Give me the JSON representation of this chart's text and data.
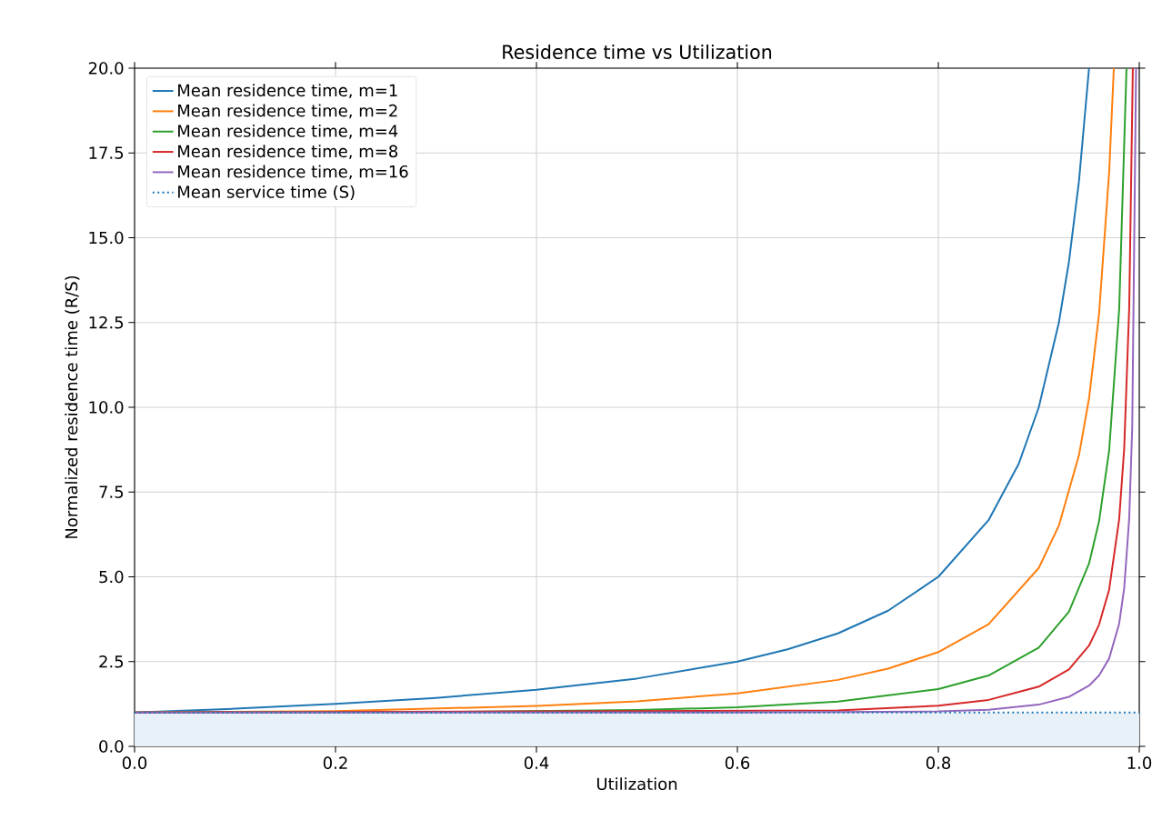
{
  "chart_data": {
    "type": "line",
    "title": "Residence time vs Utilization",
    "xlabel": "Utilization",
    "ylabel": "Normalized residence time (R/S)",
    "xlim": [
      0,
      1
    ],
    "ylim": [
      0,
      20
    ],
    "xticks": [
      {
        "value": 0,
        "label": "0.0"
      },
      {
        "value": 0.2,
        "label": "0.2"
      },
      {
        "value": 0.4,
        "label": "0.4"
      },
      {
        "value": 0.6,
        "label": "0.6"
      },
      {
        "value": 0.8,
        "label": "0.8"
      },
      {
        "value": 1,
        "label": "1.0"
      }
    ],
    "yticks": [
      {
        "value": 0,
        "label": "0.0"
      },
      {
        "value": 2.5,
        "label": "2.5"
      },
      {
        "value": 5,
        "label": "5.0"
      },
      {
        "value": 7.5,
        "label": "7.5"
      },
      {
        "value": 10,
        "label": "10.0"
      },
      {
        "value": 12.5,
        "label": "12.5"
      },
      {
        "value": 15,
        "label": "15.0"
      },
      {
        "value": 17.5,
        "label": "17.5"
      },
      {
        "value": 20,
        "label": "20.0"
      }
    ],
    "grid": true,
    "legend": "top left",
    "marker": "none",
    "bands": [
      {
        "axis": "y",
        "from": 0,
        "to": 1,
        "color": "#e8f1f7"
      }
    ],
    "series": [
      {
        "name": "Mean residence time, m=1",
        "color": "#1f77b4",
        "x": [
          0,
          0.1,
          0.2,
          0.3,
          0.4,
          0.5,
          0.6,
          0.65,
          0.7,
          0.75,
          0.8,
          0.85,
          0.88,
          0.9,
          0.92,
          0.93,
          0.94,
          0.95
        ],
        "values": [
          1,
          1.11,
          1.25,
          1.43,
          1.67,
          2,
          2.5,
          2.86,
          3.33,
          4,
          5,
          6.67,
          8.33,
          10,
          12.5,
          14.29,
          16.67,
          20
        ]
      },
      {
        "name": "Mean residence time, m=2",
        "color": "#ff7f0e",
        "x": [
          0,
          0.2,
          0.4,
          0.5,
          0.6,
          0.7,
          0.75,
          0.8,
          0.85,
          0.9,
          0.92,
          0.94,
          0.95,
          0.96,
          0.97,
          0.9747
        ],
        "values": [
          1,
          1.04,
          1.19,
          1.33,
          1.56,
          1.96,
          2.29,
          2.78,
          3.6,
          5.26,
          6.51,
          8.59,
          10.26,
          12.76,
          16.92,
          20
        ]
      },
      {
        "name": "Mean residence time, m=4",
        "color": "#2ca02c",
        "x": [
          0,
          0.3,
          0.5,
          0.6,
          0.7,
          0.8,
          0.85,
          0.9,
          0.93,
          0.95,
          0.96,
          0.97,
          0.98,
          0.9873
        ],
        "values": [
          1,
          1.01,
          1.07,
          1.15,
          1.32,
          1.69,
          2.09,
          2.91,
          3.97,
          5.39,
          6.64,
          8.72,
          12.89,
          20
        ]
      },
      {
        "name": "Mean residence time, m=8",
        "color": "#d62728",
        "x": [
          0,
          0.7,
          0.8,
          0.85,
          0.9,
          0.93,
          0.95,
          0.96,
          0.97,
          0.98,
          0.985,
          0.99,
          0.9936
        ],
        "values": [
          1,
          1.06,
          1.2,
          1.37,
          1.76,
          2.27,
          2.97,
          3.59,
          4.62,
          6.7,
          8.78,
          12.94,
          20
        ]
      },
      {
        "name": "Mean residence time, m=16",
        "color": "#9467bd",
        "x": [
          0,
          0.6,
          0.8,
          0.85,
          0.9,
          0.93,
          0.95,
          0.96,
          0.97,
          0.98,
          0.985,
          0.99,
          0.993,
          0.9968
        ],
        "values": [
          1,
          1,
          1.03,
          1.08,
          1.23,
          1.46,
          1.79,
          2.09,
          2.59,
          3.62,
          4.66,
          6.73,
          9.41,
          20
        ]
      },
      {
        "name": "Mean service time (S)",
        "color": "#1f77b4",
        "line_style": "dotted",
        "x": [
          0,
          1
        ],
        "values": [
          1,
          1
        ]
      }
    ]
  }
}
